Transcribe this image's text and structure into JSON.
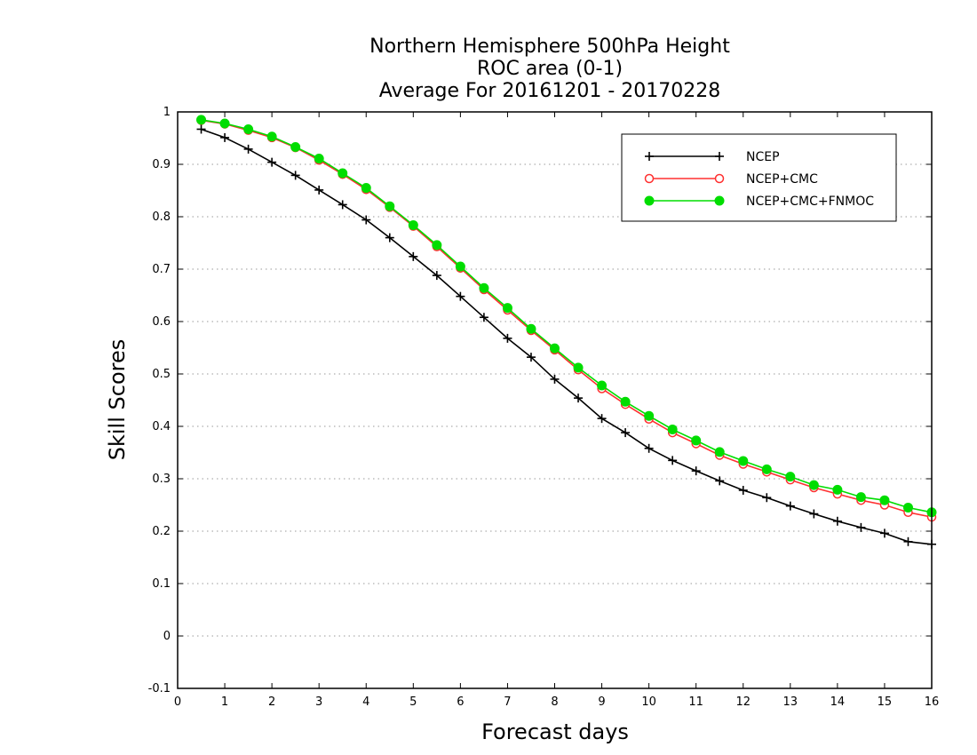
{
  "chart_data": {
    "type": "line",
    "title": [
      "Northern Hemisphere 500hPa Height",
      "ROC area (0-1)",
      "Average For 20161201 - 20170228"
    ],
    "xlabel": "Forecast days",
    "ylabel": "Skill Scores",
    "xlim": [
      0,
      16
    ],
    "ylim": [
      -0.1,
      1
    ],
    "xticks": [
      0,
      1,
      2,
      3,
      4,
      5,
      6,
      7,
      8,
      9,
      10,
      11,
      12,
      13,
      14,
      15,
      16
    ],
    "yticks": [
      -0.1,
      0,
      0.1,
      0.2,
      0.3,
      0.4,
      0.5,
      0.6,
      0.7,
      0.8,
      0.9,
      1
    ],
    "ytick_labels": [
      "-0.1",
      "0",
      "0.1",
      "0.2",
      "0.3",
      "0.4",
      "0.5",
      "0.6",
      "0.7",
      "0.8",
      "0.9",
      "1"
    ],
    "grid": "horizontal-dotted",
    "legend_position": "top-right",
    "x": [
      0.5,
      1,
      1.5,
      2,
      2.5,
      3,
      3.5,
      4,
      4.5,
      5,
      5.5,
      6,
      6.5,
      7,
      7.5,
      8,
      8.5,
      9,
      9.5,
      10,
      10.5,
      11,
      11.5,
      12,
      12.5,
      13,
      13.5,
      14,
      14.5,
      15,
      15.5,
      16
    ],
    "series": [
      {
        "name": "NCEP",
        "color": "#000000",
        "marker": "plus",
        "values": [
          0.967,
          0.951,
          0.929,
          0.904,
          0.879,
          0.851,
          0.823,
          0.794,
          0.76,
          0.724,
          0.688,
          0.648,
          0.608,
          0.568,
          0.532,
          0.49,
          0.454,
          0.415,
          0.388,
          0.358,
          0.335,
          0.315,
          0.296,
          0.278,
          0.264,
          0.248,
          0.233,
          0.219,
          0.207,
          0.196,
          0.18,
          0.175
        ]
      },
      {
        "name": "NCEP+CMC",
        "color": "#ff3030",
        "marker": "open-circle",
        "values": [
          0.984,
          0.977,
          0.965,
          0.951,
          0.932,
          0.908,
          0.881,
          0.852,
          0.818,
          0.782,
          0.743,
          0.702,
          0.661,
          0.622,
          0.583,
          0.546,
          0.508,
          0.472,
          0.442,
          0.414,
          0.388,
          0.367,
          0.345,
          0.328,
          0.313,
          0.298,
          0.283,
          0.271,
          0.259,
          0.25,
          0.236,
          0.227
        ]
      },
      {
        "name": "NCEP+CMC+FNMOC",
        "color": "#00dd00",
        "marker": "filled-circle",
        "values": [
          0.985,
          0.978,
          0.967,
          0.953,
          0.933,
          0.911,
          0.883,
          0.855,
          0.82,
          0.784,
          0.746,
          0.705,
          0.664,
          0.626,
          0.586,
          0.549,
          0.512,
          0.478,
          0.447,
          0.42,
          0.394,
          0.373,
          0.351,
          0.334,
          0.318,
          0.304,
          0.288,
          0.279,
          0.265,
          0.259,
          0.245,
          0.236
        ]
      }
    ]
  }
}
